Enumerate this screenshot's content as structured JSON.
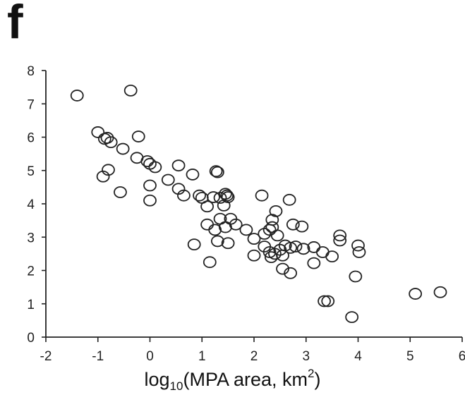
{
  "panel_label": "f",
  "chart_data": {
    "type": "scatter",
    "xlabel_parts": {
      "pre": "log",
      "sub": "10",
      "mid": "(MPA area, km",
      "sup": "2",
      "post": ")"
    },
    "ylabel": "",
    "xlim": [
      -2,
      6
    ],
    "ylim": [
      0,
      8
    ],
    "xticks": [
      -2,
      -1,
      0,
      1,
      2,
      3,
      4,
      5,
      6
    ],
    "yticks": [
      0,
      1,
      2,
      3,
      4,
      5,
      6,
      7,
      8
    ],
    "grid": false,
    "marker": "open-circle",
    "series": [
      {
        "points": [
          [
            -1.4,
            7.25
          ],
          [
            -0.37,
            7.4
          ],
          [
            -1.0,
            6.15
          ],
          [
            -0.87,
            5.95
          ],
          [
            -0.82,
            5.98
          ],
          [
            -0.75,
            5.85
          ],
          [
            -0.52,
            5.65
          ],
          [
            -0.22,
            6.02
          ],
          [
            -0.25,
            5.38
          ],
          [
            -0.05,
            5.28
          ],
          [
            0.0,
            5.2
          ],
          [
            0.1,
            5.1
          ],
          [
            -0.9,
            4.82
          ],
          [
            -0.8,
            5.02
          ],
          [
            -0.57,
            4.35
          ],
          [
            0.0,
            4.55
          ],
          [
            0.0,
            4.1
          ],
          [
            0.35,
            4.72
          ],
          [
            0.55,
            5.15
          ],
          [
            0.55,
            4.45
          ],
          [
            0.65,
            4.25
          ],
          [
            0.82,
            4.88
          ],
          [
            0.95,
            4.25
          ],
          [
            1.0,
            4.18
          ],
          [
            1.1,
            3.92
          ],
          [
            1.22,
            4.2
          ],
          [
            1.27,
            4.98
          ],
          [
            1.3,
            4.95
          ],
          [
            1.35,
            4.18
          ],
          [
            1.45,
            4.3
          ],
          [
            1.48,
            4.25
          ],
          [
            1.5,
            4.2
          ],
          [
            1.42,
            3.95
          ],
          [
            1.55,
            3.55
          ],
          [
            1.65,
            3.38
          ],
          [
            1.45,
            3.3
          ],
          [
            1.35,
            3.55
          ],
          [
            1.1,
            3.38
          ],
          [
            1.25,
            3.22
          ],
          [
            1.3,
            2.88
          ],
          [
            1.5,
            2.82
          ],
          [
            0.85,
            2.78
          ],
          [
            1.15,
            2.25
          ],
          [
            2.15,
            4.25
          ],
          [
            2.42,
            3.78
          ],
          [
            2.68,
            4.12
          ],
          [
            2.35,
            3.52
          ],
          [
            2.75,
            3.38
          ],
          [
            2.92,
            3.32
          ],
          [
            1.85,
            3.22
          ],
          [
            2.0,
            2.95
          ],
          [
            2.2,
            3.1
          ],
          [
            2.3,
            3.22
          ],
          [
            2.35,
            3.3
          ],
          [
            2.45,
            3.05
          ],
          [
            2.2,
            2.72
          ],
          [
            2.3,
            2.55
          ],
          [
            2.4,
            2.5
          ],
          [
            2.5,
            2.62
          ],
          [
            2.55,
            2.45
          ],
          [
            2.6,
            2.75
          ],
          [
            2.7,
            2.68
          ],
          [
            2.8,
            2.72
          ],
          [
            2.95,
            2.65
          ],
          [
            2.0,
            2.45
          ],
          [
            2.33,
            2.4
          ],
          [
            2.55,
            2.05
          ],
          [
            2.7,
            1.92
          ],
          [
            3.15,
            2.7
          ],
          [
            3.32,
            2.55
          ],
          [
            3.5,
            2.42
          ],
          [
            3.15,
            2.22
          ],
          [
            3.65,
            3.05
          ],
          [
            3.65,
            2.9
          ],
          [
            4.0,
            2.75
          ],
          [
            4.02,
            2.55
          ],
          [
            3.95,
            1.82
          ],
          [
            3.35,
            1.08
          ],
          [
            3.42,
            1.08
          ],
          [
            3.88,
            0.6
          ],
          [
            5.1,
            1.3
          ],
          [
            5.58,
            1.35
          ]
        ]
      }
    ]
  }
}
